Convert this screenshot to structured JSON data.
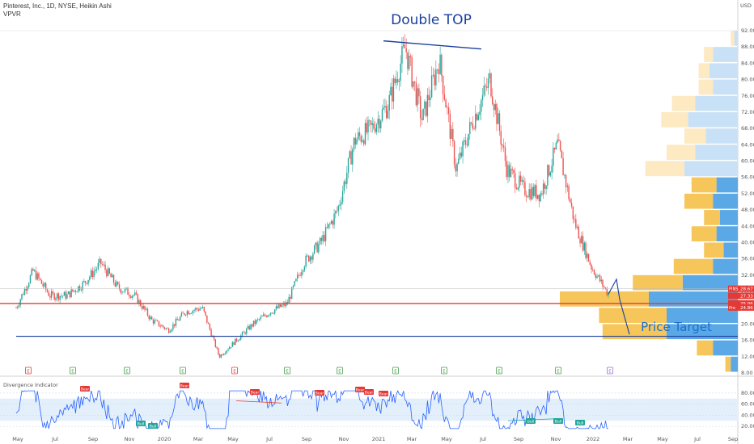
{
  "header": {
    "title_line": "Pinterest, Inc., 1D, NYSE, Heikin Ashi",
    "indicator_line": "VPVR",
    "currency": "USD"
  },
  "annotations": {
    "double_top": "Double TOP",
    "price_target": "Price Target"
  },
  "oscillator": {
    "label": "Divergence Indicator",
    "bear_badge": "Bear",
    "bull_badge": "Bull",
    "y_ticks": [
      80,
      60,
      40,
      20
    ],
    "band_low": 30,
    "band_high": 70,
    "y_range": [
      10,
      90
    ]
  },
  "price_tags": [
    {
      "label": "PINS",
      "value": "28.67",
      "color": "#e53935"
    },
    {
      "label": "",
      "value": "27.33",
      "color": "#e53935"
    },
    {
      "label": "",
      "value": "25.06",
      "color": "#e53935"
    },
    {
      "label": "Pre",
      "value": "24.86",
      "color": "#e53935"
    }
  ],
  "earnings_markers": [
    "E",
    "E",
    "E",
    "E",
    "E",
    "E",
    "E",
    "E",
    "E",
    "E",
    "E",
    "E"
  ],
  "colors": {
    "up": "#26a69a",
    "down": "#ef5350",
    "support_red": "#e53935",
    "target_blue": "#1a3fa0",
    "vp_blue": "#5aa9e6",
    "vp_orange": "#f6c65b",
    "osc_line": "#2962ff"
  },
  "chart_data": {
    "type": "candlestick",
    "symbol": "PINS",
    "timeframe": "1D",
    "style": "Heikin Ashi",
    "y_range": [
      8,
      92
    ],
    "y_ticks": [
      8,
      12,
      16,
      20,
      24,
      28,
      32,
      36,
      40,
      44,
      48,
      52,
      56,
      60,
      64,
      68,
      72,
      76,
      80,
      84,
      88,
      92
    ],
    "x_ticks": [
      "May",
      "Jul",
      "Sep",
      "Nov",
      "2020",
      "Mar",
      "May",
      "Jul",
      "Sep",
      "Nov",
      "2021",
      "Mar",
      "May",
      "Jul",
      "Sep",
      "Nov",
      "2022",
      "Mar",
      "May",
      "Jul",
      "Sep"
    ],
    "close_path": [
      [
        "2019-04",
        24
      ],
      [
        "2019-04b",
        33
      ],
      [
        "2019-05",
        27
      ],
      [
        "2019-06",
        27
      ],
      [
        "2019-07",
        30
      ],
      [
        "2019-08",
        35
      ],
      [
        "2019-09",
        29
      ],
      [
        "2019-10",
        27
      ],
      [
        "2019-11",
        21
      ],
      [
        "2019-12",
        18.5
      ],
      [
        "2020-01",
        23
      ],
      [
        "2020-02",
        24
      ],
      [
        "2020-03",
        12
      ],
      [
        "2020-04",
        16
      ],
      [
        "2020-05",
        20
      ],
      [
        "2020-06",
        23
      ],
      [
        "2020-07",
        25
      ],
      [
        "2020-08",
        35
      ],
      [
        "2020-09",
        40
      ],
      [
        "2020-10",
        48
      ],
      [
        "2020-11",
        65
      ],
      [
        "2020-12",
        68
      ],
      [
        "2021-01",
        74
      ],
      [
        "2021-02",
        88
      ],
      [
        "2021-03",
        70
      ],
      [
        "2021-04",
        85
      ],
      [
        "2021-05",
        58
      ],
      [
        "2021-06",
        70
      ],
      [
        "2021-07",
        80
      ],
      [
        "2021-08",
        58
      ],
      [
        "2021-09",
        53
      ],
      [
        "2021-10",
        52
      ],
      [
        "2021-11",
        64
      ],
      [
        "2021-12",
        45
      ],
      [
        "2022-01",
        34
      ],
      [
        "2022-02",
        27.3
      ]
    ],
    "support_line": 25.06,
    "target_line": 17.0,
    "double_top_line": {
      "from": [
        "2021-02",
        89.5
      ],
      "to": [
        "2021-07",
        87.5
      ]
    },
    "volume_profile": [
      {
        "price": 90,
        "up": 2,
        "down": 2
      },
      {
        "price": 86,
        "up": 5,
        "down": 14
      },
      {
        "price": 82,
        "up": 6,
        "down": 16
      },
      {
        "price": 78,
        "up": 8,
        "down": 14
      },
      {
        "price": 74,
        "up": 13,
        "down": 24
      },
      {
        "price": 70,
        "up": 15,
        "down": 28
      },
      {
        "price": 66,
        "up": 12,
        "down": 18
      },
      {
        "price": 62,
        "up": 16,
        "down": 24
      },
      {
        "price": 58,
        "up": 22,
        "down": 30
      },
      {
        "price": 54,
        "up": 14,
        "down": 12
      },
      {
        "price": 50,
        "up": 16,
        "down": 14
      },
      {
        "price": 46,
        "up": 9,
        "down": 10
      },
      {
        "price": 42,
        "up": 14,
        "down": 12
      },
      {
        "price": 38,
        "up": 11,
        "down": 8
      },
      {
        "price": 34,
        "up": 22,
        "down": 14
      },
      {
        "price": 30,
        "up": 28,
        "down": 31
      },
      {
        "price": 26,
        "up": 50,
        "down": 50
      },
      {
        "price": 22,
        "up": 38,
        "down": 40
      },
      {
        "price": 18,
        "up": 36,
        "down": 40
      },
      {
        "price": 14,
        "up": 9,
        "down": 14
      },
      {
        "price": 10,
        "up": 3,
        "down": 4
      }
    ]
  }
}
